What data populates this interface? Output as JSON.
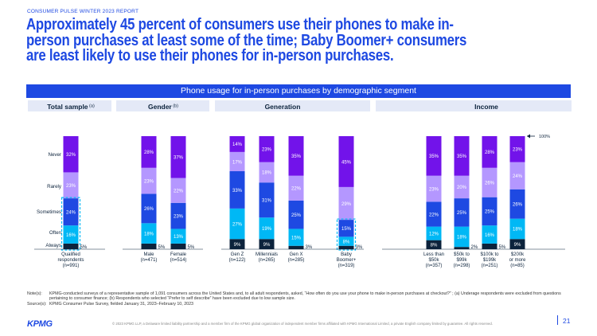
{
  "report_label": "CONSUMER PULSE WINTER 2023 REPORT",
  "headline": "Approximately 45 percent of consumers use their phones to make in-person purchases at least some of the time; Baby Boomer+ consumers are least likely to use their phones for in-person purchases.",
  "banner": "Phone usage for in-person purchases by demographic segment",
  "notes_label": "Note(s):",
  "notes_text": "KPMG-conducted surveys of a representative sample of 1,091 consumers across the United States and, to all adult respondents, asked, “How often do you use your phone to make in-person purchases at checkout?” ; (a) Underage respondents were excluded from questions pertaining to consumer finance; (b) Respondents who selected “Prefer to self describe” have been excluded due to low sample size.",
  "source_label": "Source(s):",
  "source_text": "KPMG Consumer Pulse Survey, fielded January 31, 2023–February 10, 2023",
  "logo": "KPMG",
  "copyright": "© 2023 KPMG LLP, a Delaware limited liability partnership and a member firm of the KPMG global organization of independent member firms affiliated with KPMG International Limited, a private English company limited by guarantee. All rights reserved.",
  "page_number": "21",
  "colors": {
    "accent": "#1e49e2",
    "never": "#7213ea",
    "rarely": "#b497ff",
    "sometimes": "#1e49e2",
    "often": "#00b8f5",
    "always": "#0c233c"
  },
  "chart_data": {
    "type": "bar",
    "stacked": true,
    "y_max": 100,
    "top_marker": "100%",
    "categories_order": [
      "Always",
      "Often",
      "Sometimes",
      "Rarely",
      "Never"
    ],
    "y_labels": [
      "Never",
      "Rarely",
      "Sometimes",
      "Often",
      "Always"
    ],
    "groups": [
      {
        "title": "Total sample",
        "sup": "(a)",
        "bars": [
          {
            "label": [
              "Qualified",
              "respondents",
              "(n=991)"
            ],
            "values": [
              5,
              16,
              24,
              23,
              32
            ],
            "highlight": true
          }
        ]
      },
      {
        "title": "Gender",
        "sup": "(b)",
        "bars": [
          {
            "label": [
              "Male",
              "(n=471)"
            ],
            "values": [
              5,
              18,
              26,
              23,
              28
            ]
          },
          {
            "label": [
              "Female",
              "(n=514)"
            ],
            "values": [
              5,
              13,
              23,
              22,
              37
            ]
          }
        ]
      },
      {
        "title": "Generation",
        "sup": "",
        "bars": [
          {
            "label": [
              "Gen Z",
              "(n=122)"
            ],
            "values": [
              9,
              27,
              33,
              17,
              14
            ]
          },
          {
            "label": [
              "Millennials",
              "(n=265)"
            ],
            "values": [
              9,
              19,
              31,
              18,
              23
            ]
          },
          {
            "label": [
              "Gen X",
              "(n=285)"
            ],
            "values": [
              3,
              15,
              25,
              22,
              35
            ]
          },
          {
            "label": [
              "Baby",
              "Boomer+",
              "(n=319)"
            ],
            "values": [
              3,
              8,
              15,
              29,
              45
            ],
            "highlight": true
          }
        ]
      },
      {
        "title": "Income",
        "sup": "",
        "bars": [
          {
            "label": [
              "Less than",
              "$50k",
              "(n=357)"
            ],
            "values": [
              8,
              12,
              22,
              23,
              35
            ]
          },
          {
            "label": [
              "$50k to",
              "$99k",
              "(n=298)"
            ],
            "values": [
              2,
              18,
              25,
              20,
              35
            ]
          },
          {
            "label": [
              "$100k to",
              "$199k",
              "(n=251)"
            ],
            "values": [
              5,
              16,
              25,
              26,
              28
            ]
          },
          {
            "label": [
              "$200k",
              "or more",
              "(n=85)"
            ],
            "values": [
              9,
              18,
              26,
              24,
              23
            ]
          }
        ]
      }
    ]
  }
}
